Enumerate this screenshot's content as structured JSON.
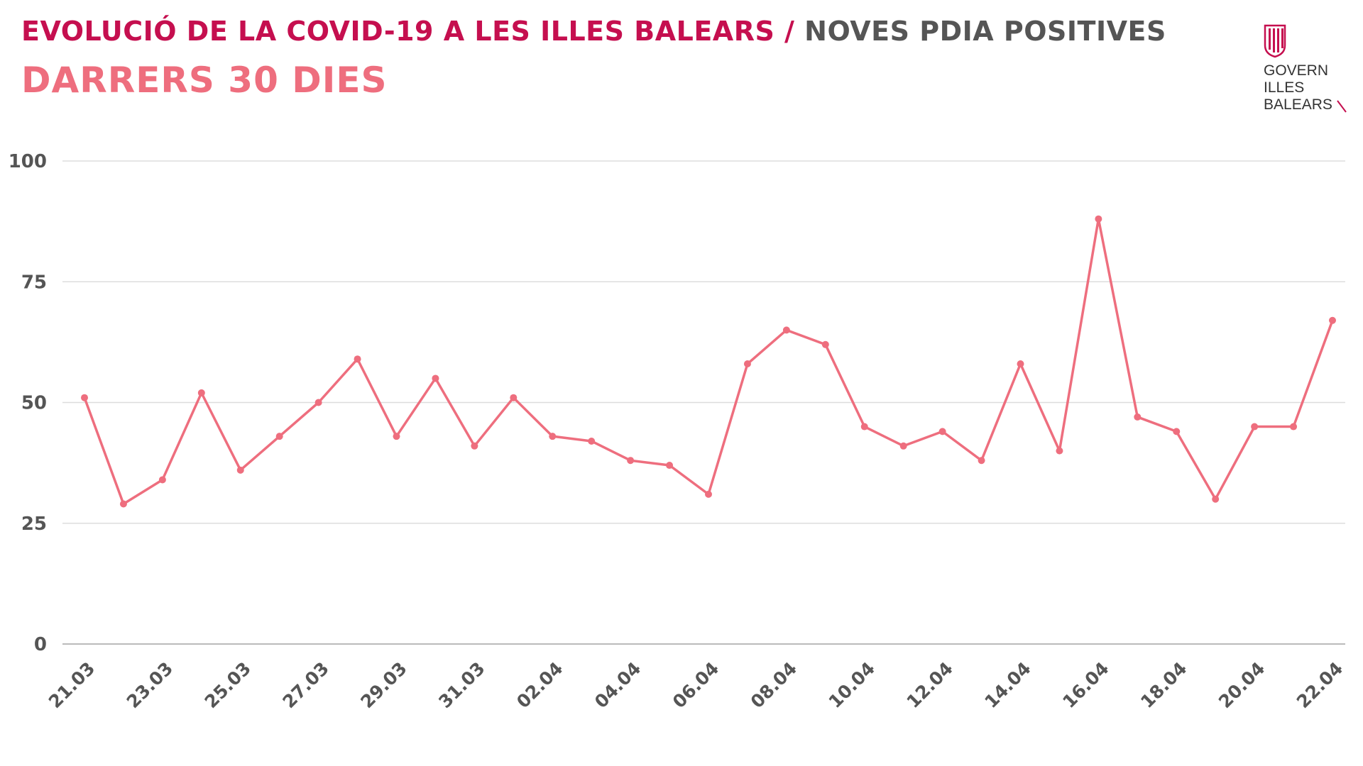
{
  "header": {
    "title_main": "EVOLUCIÓ DE LA COVID-19 A LES ILLES BALEARS",
    "title_sep": " / ",
    "title_sub": "NOVES PDIA POSITIVES",
    "subtitle": "DARRERS 30 DIES"
  },
  "logo": {
    "line1": "GOVERN",
    "line2": "ILLES",
    "line3": "BALEARS",
    "icon": "govern-emblem-icon"
  },
  "colors": {
    "line": "#ee6e7e",
    "title": "#c50f4f",
    "grid": "#dddddd",
    "text": "#555555"
  },
  "chart_data": {
    "type": "line",
    "title": "DARRERS 30 DIES",
    "xlabel": "",
    "ylabel": "",
    "ylim": [
      0,
      100
    ],
    "y_ticks": [
      0,
      25,
      50,
      75,
      100
    ],
    "x_tick_labels": [
      "21.03",
      "23.03",
      "25.03",
      "27.03",
      "29.03",
      "31.03",
      "02.04",
      "04.04",
      "06.04",
      "08.04",
      "10.04",
      "12.04",
      "14.04",
      "16.04",
      "18.04",
      "20.04",
      "22.04"
    ],
    "categories": [
      "21.03",
      "22.03",
      "23.03",
      "24.03",
      "25.03",
      "26.03",
      "27.03",
      "28.03",
      "29.03",
      "30.03",
      "31.03",
      "01.04",
      "02.04",
      "03.04",
      "04.04",
      "05.04",
      "06.04",
      "07.04",
      "08.04",
      "09.04",
      "10.04",
      "11.04",
      "12.04",
      "13.04",
      "14.04",
      "15.04",
      "16.04",
      "17.04",
      "18.04",
      "19.04",
      "20.04",
      "21.04",
      "22.04"
    ],
    "series": [
      {
        "name": "Noves PDIA positives",
        "values": [
          51,
          29,
          34,
          52,
          36,
          43,
          50,
          59,
          43,
          55,
          41,
          51,
          43,
          42,
          38,
          37,
          31,
          58,
          65,
          62,
          45,
          41,
          44,
          38,
          58,
          40,
          88,
          47,
          44,
          30,
          45,
          45,
          67
        ]
      }
    ]
  }
}
